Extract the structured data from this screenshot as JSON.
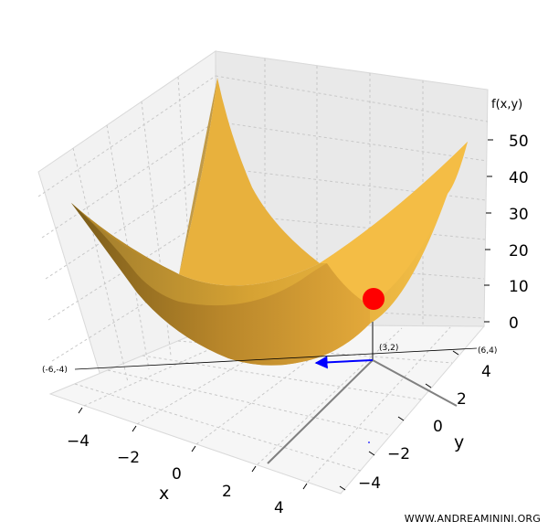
{
  "watermark": "WWW.ANDREAMININI.ORG",
  "chart_data": {
    "type": "surface",
    "function": "f(x,y) = x^2 + y^2",
    "xlabel": "x",
    "ylabel": "y",
    "zlabel": "f(x,y)",
    "xlim": [
      -5,
      5
    ],
    "ylim": [
      -5,
      5
    ],
    "zlim": [
      0,
      52
    ],
    "xticks": [
      "−4",
      "−2",
      "0",
      "2",
      "4"
    ],
    "yticks": [
      "−4",
      "−2",
      "0",
      "2",
      "4"
    ],
    "zticks": [
      "0",
      "10",
      "20",
      "30",
      "40",
      "50"
    ],
    "grid": true,
    "surface_color": "#f2b632",
    "point": {
      "x": 3,
      "y": 2,
      "z": 13,
      "color": "#ff0000"
    },
    "gradient_arrow": {
      "from": [
        3,
        2
      ],
      "to": [
        0,
        0
      ],
      "color": "#0000ff"
    },
    "annotations": [
      "(3,2)",
      "(6,4)",
      "(-6,-4)"
    ]
  }
}
